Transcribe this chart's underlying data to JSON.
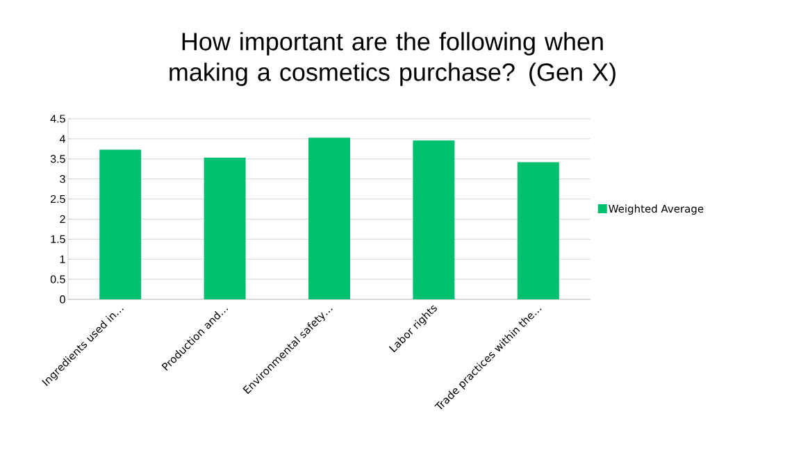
{
  "chart_data": {
    "type": "bar",
    "title": "How important are the following when making a cosmetics purchase? (Gen X)",
    "categories": [
      "Ingredients used in…",
      "Production and…",
      "Environmental safety…",
      "Labor rights",
      "Trade practices within the…"
    ],
    "series": [
      {
        "name": "Weighted Average",
        "color": "#00bf6f",
        "values": [
          3.73,
          3.53,
          4.03,
          3.96,
          3.42
        ]
      }
    ],
    "ylim": [
      0,
      4.5
    ],
    "yticks": [
      0,
      0.5,
      1,
      1.5,
      2,
      2.5,
      3,
      3.5,
      4,
      4.5
    ],
    "grid": "y",
    "legend": "right"
  }
}
